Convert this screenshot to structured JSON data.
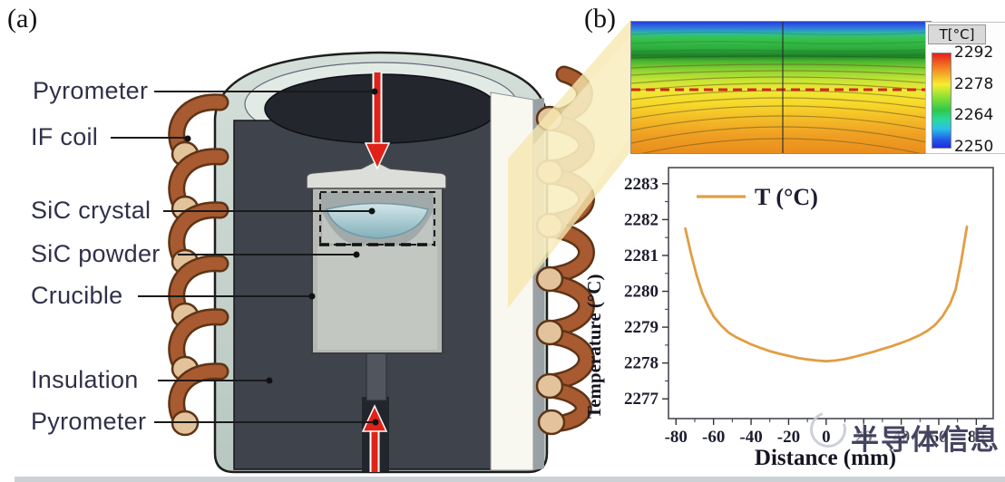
{
  "panel_a": {
    "tag": "(a)",
    "labels": {
      "pyrometer_top": "Pyrometer",
      "if_coil": "IF coil",
      "sic_crystal": "SiC crystal",
      "sic_powder": "SiC powder",
      "crucible": "Crucible",
      "insulation": "Insulation",
      "pyrometer_bottom": "Pyrometer"
    }
  },
  "panel_b": {
    "tag": "(b)",
    "watermark_text": "半导体信息"
  },
  "chart_data": [
    {
      "type": "heatmap",
      "description": "Temperature contour map of the growth chamber with streamlines; a red dashed horizontal line marks the crystal growth front and a vertical centerline splits the domain",
      "colorbar_title": "T[°C]",
      "colorbar_ticks": [
        2292,
        2278,
        2264,
        2250
      ],
      "value_range": [
        2250,
        2292
      ],
      "orientation": "blue (cold) at top, orange (hot) at bottom",
      "annotations": [
        "red dashed isotherm at mid-height",
        "vertical centerline"
      ]
    },
    {
      "type": "line",
      "xlabel": "Distance (mm)",
      "ylabel": "Temperature (°C)",
      "legend": "T (°C)",
      "legend_position": "top-left-inside",
      "line_color": "#e29d44",
      "xlim": [
        -84,
        89
      ],
      "ylim": [
        2276.45,
        2283.45
      ],
      "xticks": [
        -80,
        -60,
        -40,
        -20,
        0,
        20,
        40,
        60,
        80
      ],
      "yticks": [
        2277,
        2278,
        2279,
        2280,
        2281,
        2282,
        2283
      ],
      "series": [
        {
          "name": "T (°C)",
          "x": [
            -75,
            -72,
            -69,
            -66,
            -63,
            -60,
            -56,
            -52,
            -48,
            -44,
            -40,
            -35,
            -30,
            -25,
            -20,
            -15,
            -10,
            -5,
            0,
            5,
            10,
            15,
            20,
            25,
            30,
            35,
            40,
            45,
            50,
            54,
            58,
            62,
            66,
            69,
            72,
            75
          ],
          "y": [
            2281.75,
            2281.05,
            2280.45,
            2279.95,
            2279.6,
            2279.3,
            2279.05,
            2278.85,
            2278.72,
            2278.62,
            2278.52,
            2278.42,
            2278.33,
            2278.26,
            2278.2,
            2278.14,
            2278.1,
            2278.07,
            2278.05,
            2278.07,
            2278.11,
            2278.17,
            2278.24,
            2278.31,
            2278.39,
            2278.47,
            2278.56,
            2278.66,
            2278.78,
            2278.9,
            2279.06,
            2279.3,
            2279.65,
            2280.05,
            2280.85,
            2281.8
          ]
        }
      ]
    }
  ]
}
